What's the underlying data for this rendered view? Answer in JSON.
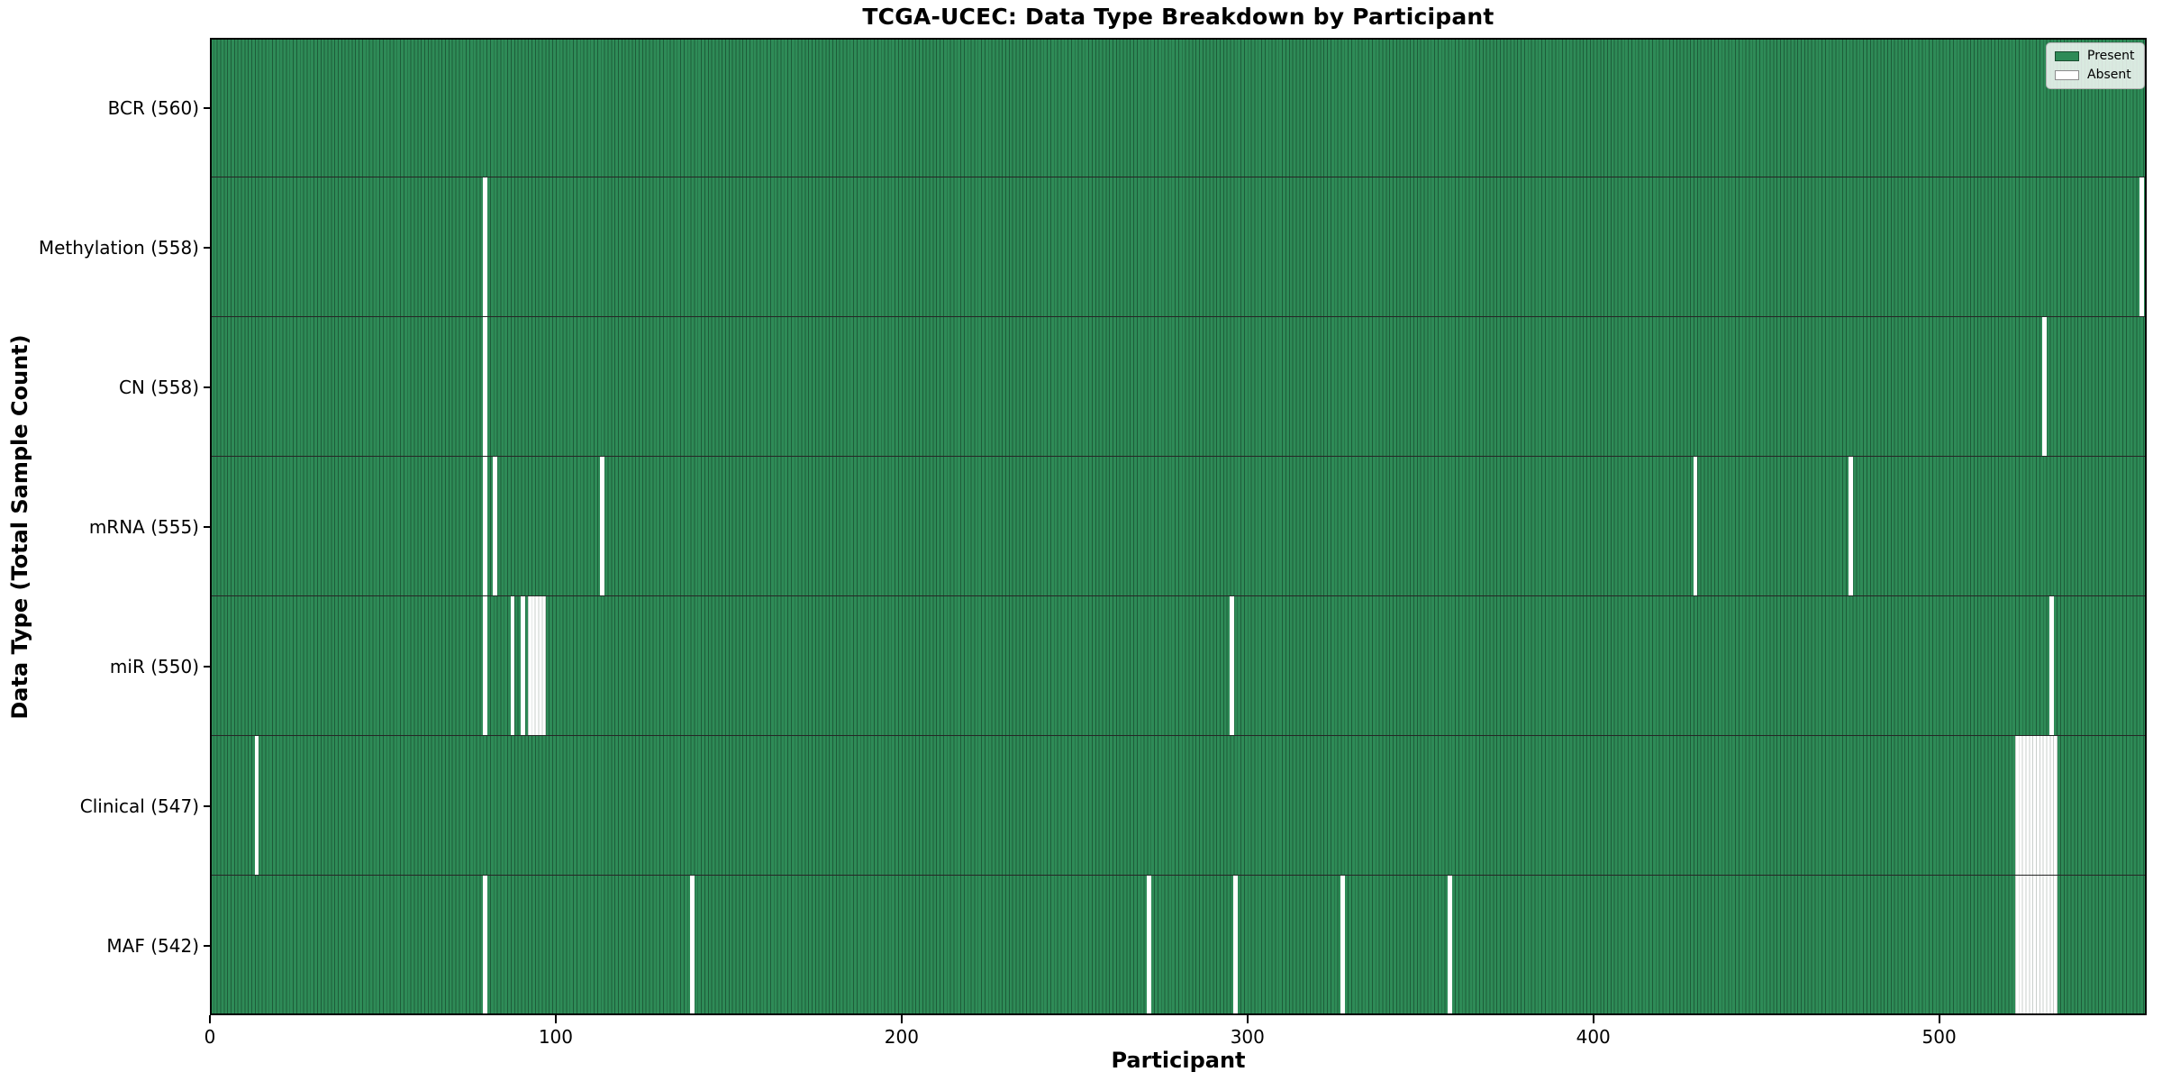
{
  "chart_data": {
    "type": "heatmap",
    "title": "TCGA-UCEC: Data Type Breakdown by Participant",
    "xlabel": "Participant",
    "ylabel": "Data Type (Total Sample Count)",
    "n_participants": 560,
    "x_ticks": [
      0,
      100,
      200,
      300,
      400,
      500
    ],
    "grid": false,
    "legend": {
      "position": "upper right",
      "entries": [
        {
          "label": "Present",
          "color": "#2e8b57"
        },
        {
          "label": "Absent",
          "color": "#ffffff"
        }
      ]
    },
    "colors": {
      "present": "#2e8b57",
      "absent": "#ffffff",
      "bar_edge": "#1d5c39",
      "absent_bar_edge": "#c9cfcb",
      "row_separator": "#262626",
      "frame": "#000000"
    },
    "rows": [
      {
        "data_type": "BCR",
        "label": "BCR (560)",
        "present_count": 560,
        "absent_participants": []
      },
      {
        "data_type": "Methylation",
        "label": "Methylation (558)",
        "present_count": 558,
        "absent_participants": [
          79,
          558
        ]
      },
      {
        "data_type": "CN",
        "label": "CN (558)",
        "present_count": 558,
        "absent_participants": [
          79,
          530
        ]
      },
      {
        "data_type": "mRNA",
        "label": "mRNA (555)",
        "present_count": 555,
        "absent_participants": [
          79,
          82,
          113,
          429,
          474
        ]
      },
      {
        "data_type": "miR",
        "label": "miR (550)",
        "present_count": 550,
        "absent_participants": [
          79,
          87,
          90,
          92,
          93,
          94,
          95,
          96,
          295,
          532
        ]
      },
      {
        "data_type": "Clinical",
        "label": "Clinical (547)",
        "present_count": 547,
        "absent_participants": [
          13,
          522,
          523,
          524,
          525,
          526,
          527,
          528,
          529,
          530,
          531,
          532,
          533
        ]
      },
      {
        "data_type": "MAF",
        "label": "MAF (542)",
        "present_count": 542,
        "absent_participants": [
          79,
          139,
          271,
          296,
          327,
          358,
          522,
          523,
          524,
          525,
          526,
          527,
          528,
          529,
          530,
          531,
          532,
          533
        ]
      }
    ]
  }
}
